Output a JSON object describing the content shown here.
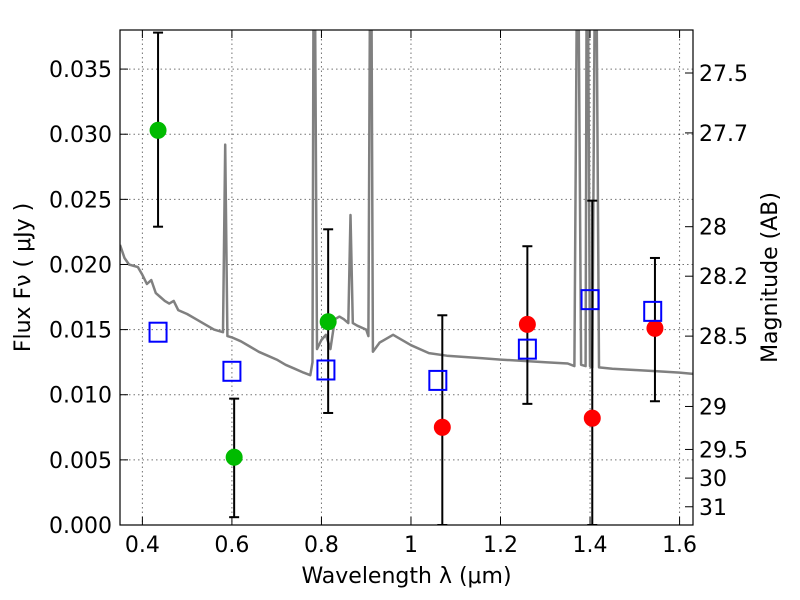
{
  "chart_data": {
    "type": "scatter",
    "title": "",
    "xlabel": "Wavelength  λ (μm)",
    "ylabel": "Flux  Fν  ( μJy )",
    "y2label": "Magnitude (AB)",
    "xlim": [
      0.35,
      1.63
    ],
    "ylim": [
      0.0,
      0.038
    ],
    "grid": true,
    "x_ticks": [
      0.4,
      0.6,
      0.8,
      1.0,
      1.2,
      1.4,
      1.6
    ],
    "x_tick_labels": [
      "0.4",
      "0.6",
      "0.8",
      "1",
      "1.2",
      "1.4",
      "1.6"
    ],
    "y_ticks": [
      0.0,
      0.005,
      0.01,
      0.015,
      0.02,
      0.025,
      0.03,
      0.035
    ],
    "y_tick_labels": [
      "0.000",
      "0.005",
      "0.010",
      "0.015",
      "0.020",
      "0.025",
      "0.030",
      "0.035"
    ],
    "y2_ticks": [
      {
        "label": "27.5",
        "flux": 0.0347
      },
      {
        "label": "27.7",
        "flux": 0.0301
      },
      {
        "label": "28",
        "flux": 0.0229
      },
      {
        "label": "28.2",
        "flux": 0.0191
      },
      {
        "label": "28.5",
        "flux": 0.0145
      },
      {
        "label": "29",
        "flux": 0.0091
      },
      {
        "label": "29.5",
        "flux": 0.0058
      },
      {
        "label": "30",
        "flux": 0.0036
      },
      {
        "label": "31",
        "flux": 0.0014
      }
    ],
    "series": [
      {
        "kind": "line",
        "color": "#808080",
        "points": [
          [
            0.35,
            0.0215
          ],
          [
            0.36,
            0.0205
          ],
          [
            0.37,
            0.02
          ],
          [
            0.38,
            0.0199
          ],
          [
            0.39,
            0.0198
          ],
          [
            0.4,
            0.0192
          ],
          [
            0.41,
            0.0185
          ],
          [
            0.42,
            0.0188
          ],
          [
            0.43,
            0.0178
          ],
          [
            0.44,
            0.0175
          ],
          [
            0.45,
            0.0172
          ],
          [
            0.46,
            0.017
          ],
          [
            0.47,
            0.0172
          ],
          [
            0.48,
            0.0165
          ],
          [
            0.5,
            0.0162
          ],
          [
            0.52,
            0.0158
          ],
          [
            0.54,
            0.0154
          ],
          [
            0.56,
            0.015
          ],
          [
            0.58,
            0.0148
          ],
          [
            0.585,
            0.0292
          ],
          [
            0.59,
            0.0145
          ],
          [
            0.6,
            0.0144
          ],
          [
            0.62,
            0.0141
          ],
          [
            0.64,
            0.0137
          ],
          [
            0.66,
            0.0133
          ],
          [
            0.68,
            0.013
          ],
          [
            0.7,
            0.0127
          ],
          [
            0.72,
            0.0123
          ],
          [
            0.74,
            0.012
          ],
          [
            0.76,
            0.0117
          ],
          [
            0.775,
            0.0115
          ],
          [
            0.78,
            0.0125
          ],
          [
            0.782,
            0.038
          ],
          [
            0.786,
            0.038
          ],
          [
            0.79,
            0.0135
          ],
          [
            0.8,
            0.0142
          ],
          [
            0.81,
            0.0146
          ],
          [
            0.82,
            0.0135
          ],
          [
            0.83,
            0.0158
          ],
          [
            0.84,
            0.016
          ],
          [
            0.85,
            0.0158
          ],
          [
            0.86,
            0.0155
          ],
          [
            0.865,
            0.0238
          ],
          [
            0.87,
            0.0155
          ],
          [
            0.88,
            0.0153
          ],
          [
            0.9,
            0.015
          ],
          [
            0.905,
            0.0145
          ],
          [
            0.908,
            0.038
          ],
          [
            0.912,
            0.038
          ],
          [
            0.915,
            0.0133
          ],
          [
            0.93,
            0.014
          ],
          [
            0.96,
            0.0146
          ],
          [
            1.0,
            0.0138
          ],
          [
            1.04,
            0.0132
          ],
          [
            1.08,
            0.013
          ],
          [
            1.12,
            0.0129
          ],
          [
            1.16,
            0.0128
          ],
          [
            1.2,
            0.0127
          ],
          [
            1.25,
            0.0126
          ],
          [
            1.3,
            0.0125
          ],
          [
            1.35,
            0.0124
          ],
          [
            1.365,
            0.0122
          ],
          [
            1.37,
            0.038
          ],
          [
            1.375,
            0.038
          ],
          [
            1.38,
            0.0123
          ],
          [
            1.39,
            0.0122
          ],
          [
            1.392,
            0.038
          ],
          [
            1.396,
            0.038
          ],
          [
            1.4,
            0.0122
          ],
          [
            1.405,
            0.0121
          ],
          [
            1.41,
            0.038
          ],
          [
            1.415,
            0.038
          ],
          [
            1.42,
            0.0121
          ],
          [
            1.45,
            0.012
          ],
          [
            1.5,
            0.0119
          ],
          [
            1.55,
            0.0118
          ],
          [
            1.6,
            0.0117
          ],
          [
            1.63,
            0.0116
          ]
        ]
      },
      {
        "kind": "points",
        "marker": "circle",
        "color": "#00bb00",
        "points": [
          {
            "x": 0.435,
            "y": 0.0303,
            "err_low": 0.0229,
            "err_high": 0.0378
          },
          {
            "x": 0.605,
            "y": 0.0052,
            "err_low": 0.0006,
            "err_high": 0.0097
          },
          {
            "x": 0.815,
            "y": 0.0156,
            "err_low": 0.0086,
            "err_high": 0.0227
          }
        ]
      },
      {
        "kind": "points",
        "marker": "circle",
        "color": "#ff0000",
        "points": [
          {
            "x": 1.07,
            "y": 0.0075,
            "err_low": 0.0,
            "err_high": 0.0161
          },
          {
            "x": 1.26,
            "y": 0.0154,
            "err_low": 0.0093,
            "err_high": 0.0214
          },
          {
            "x": 1.405,
            "y": 0.0082,
            "err_low": 0.0,
            "err_high": 0.0249
          },
          {
            "x": 1.545,
            "y": 0.0151,
            "err_low": 0.0095,
            "err_high": 0.0205
          }
        ]
      },
      {
        "kind": "points",
        "marker": "square",
        "color": "#0000ff",
        "points": [
          {
            "x": 0.435,
            "y": 0.0148
          },
          {
            "x": 0.6,
            "y": 0.0118
          },
          {
            "x": 0.81,
            "y": 0.0119
          },
          {
            "x": 1.06,
            "y": 0.0111
          },
          {
            "x": 1.26,
            "y": 0.0135
          },
          {
            "x": 1.4,
            "y": 0.0173
          },
          {
            "x": 1.54,
            "y": 0.0164
          }
        ]
      }
    ]
  }
}
